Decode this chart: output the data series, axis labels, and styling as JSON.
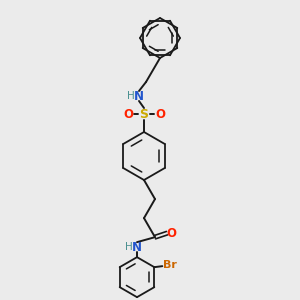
{
  "background_color": "#ebebeb",
  "bond_color": "#1a1a1a",
  "colors": {
    "N": "#2255cc",
    "O": "#ff2200",
    "S": "#ccaa00",
    "Br": "#cc6600",
    "H_N": "#4a9090",
    "C": "#1a1a1a"
  },
  "figsize": [
    3.0,
    3.0
  ],
  "dpi": 100
}
